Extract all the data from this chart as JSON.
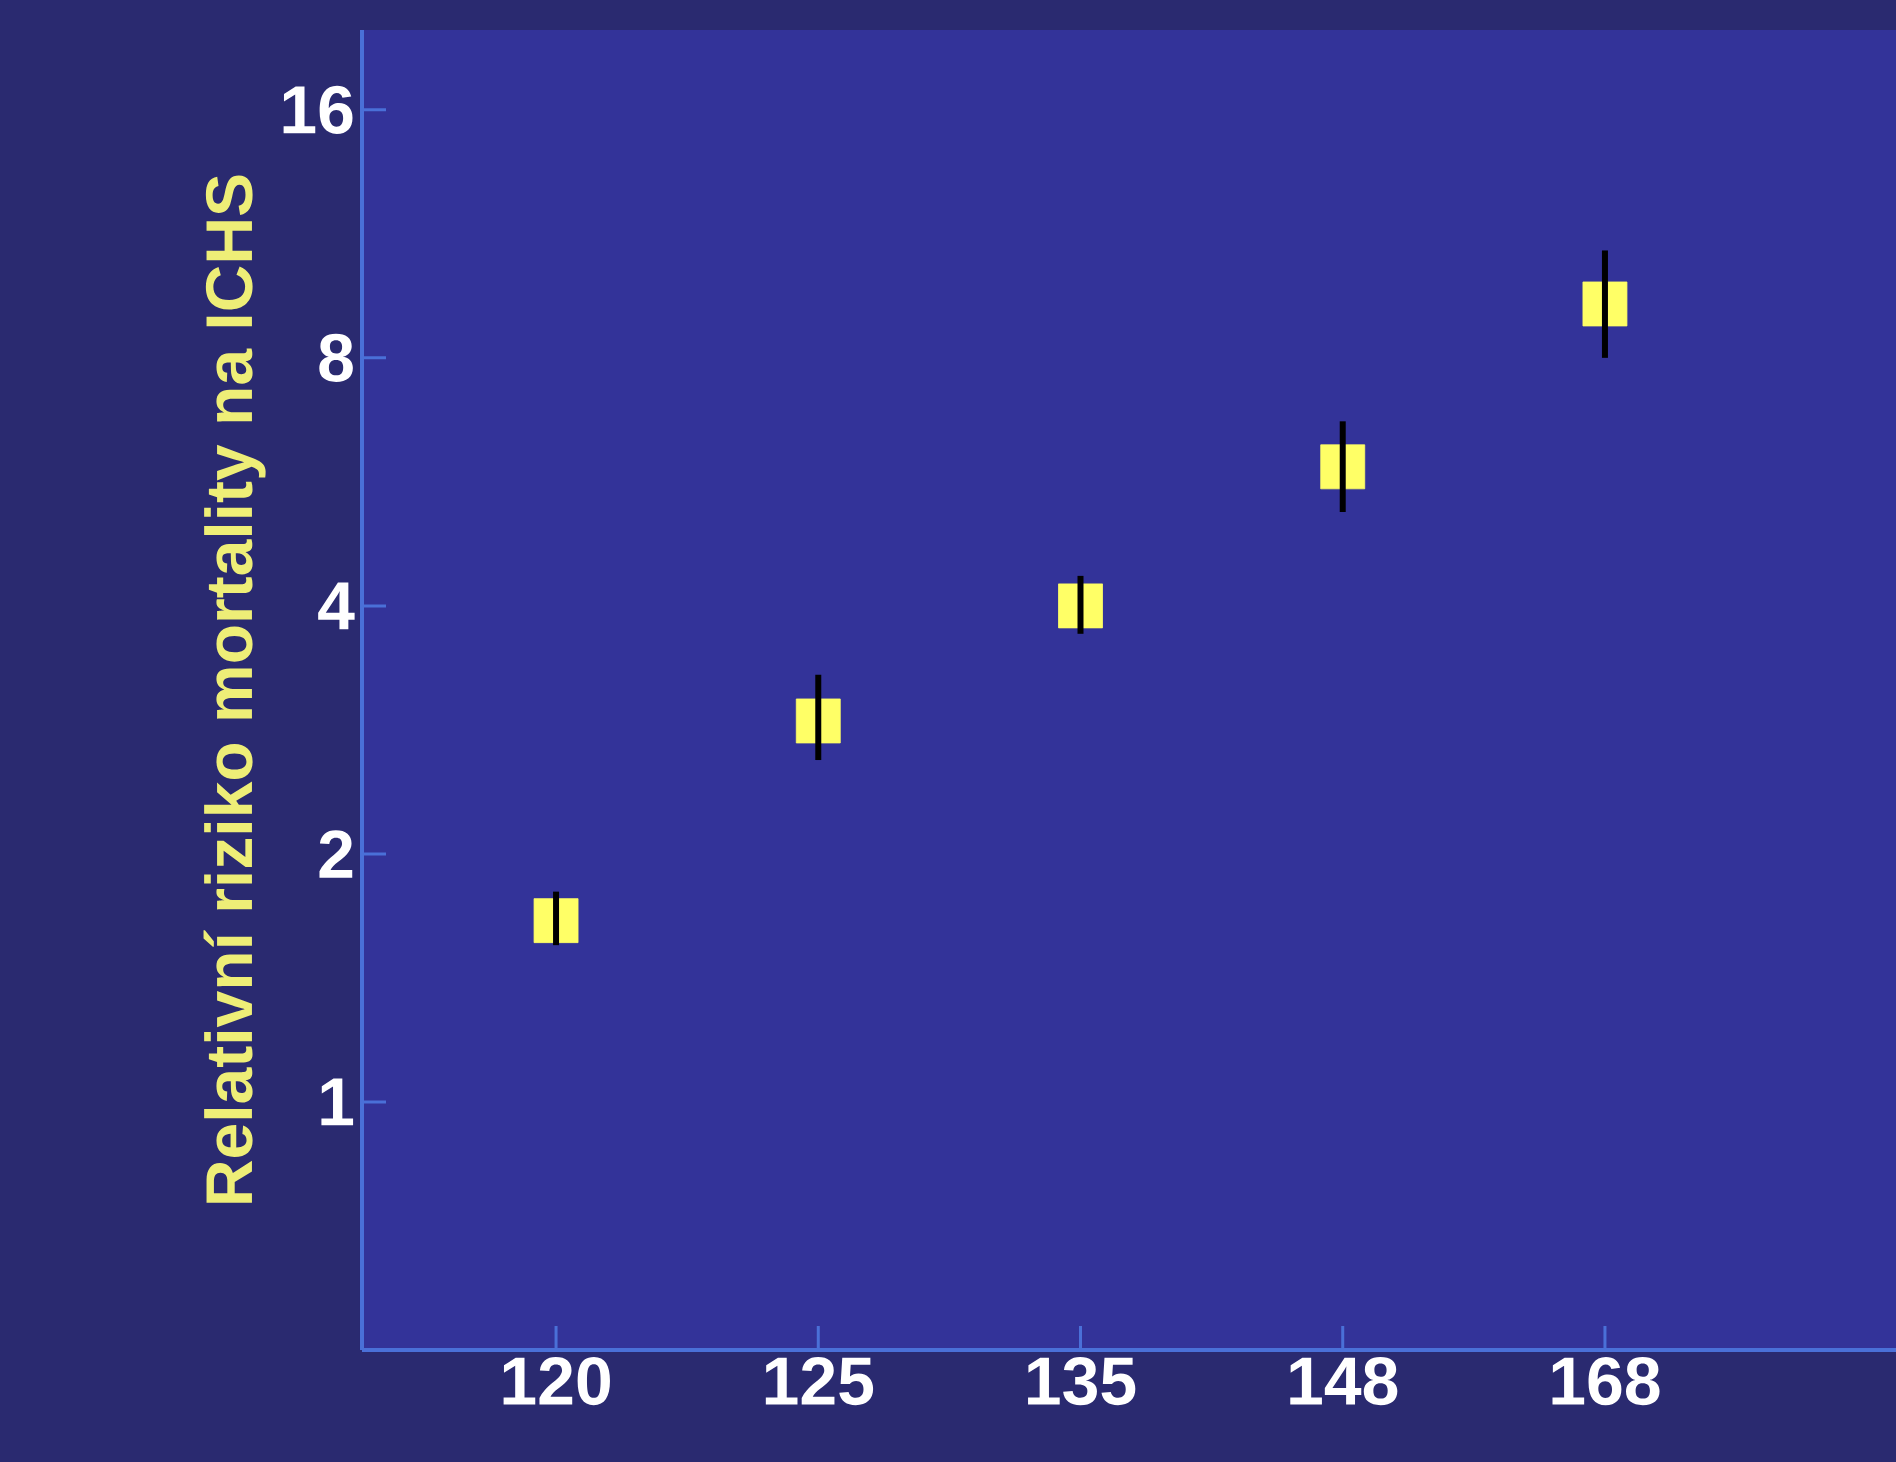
{
  "chart_data": {
    "type": "scatter",
    "ylabel": "Relativní riziko mortality na ICHS",
    "categories": [
      "120",
      "125",
      "135",
      "148",
      "168"
    ],
    "values": [
      1.66,
      2.9,
      4,
      5.9,
      9.3
    ],
    "errors": [
      [
        1.55,
        1.8
      ],
      [
        2.6,
        3.3
      ],
      [
        3.7,
        4.35
      ],
      [
        5.2,
        6.7
      ],
      [
        8,
        10.8
      ]
    ],
    "color": "#ffff66",
    "marker": "square",
    "log": "y",
    "ylim": [
      0.5,
      20
    ],
    "yticks": [
      1,
      2,
      4,
      8,
      16
    ]
  }
}
